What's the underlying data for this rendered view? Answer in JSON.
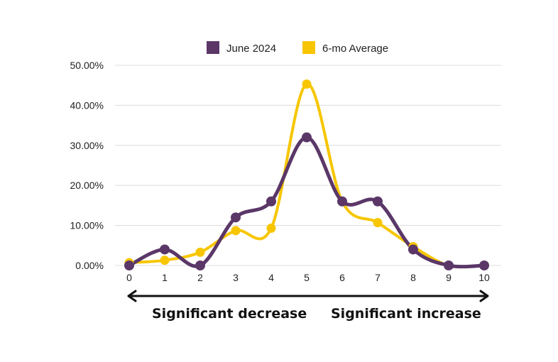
{
  "chart_data": {
    "type": "line",
    "x": [
      0,
      1,
      2,
      3,
      4,
      5,
      6,
      7,
      8,
      9,
      10
    ],
    "xticks": [
      "0",
      "1",
      "2",
      "3",
      "4",
      "5",
      "6",
      "7",
      "8",
      "9",
      "10"
    ],
    "yticks": [
      "0.00%",
      "10.00%",
      "20.00%",
      "30.00%",
      "40.00%",
      "50.00%"
    ],
    "ylim": [
      0,
      50
    ],
    "xlim": [
      0,
      10
    ],
    "grid": true,
    "legend": "top-center",
    "series": [
      {
        "name": "June 2024",
        "color": "#5b3768",
        "values": [
          0,
          4,
          0,
          12,
          16,
          32,
          16,
          16,
          4,
          0,
          0
        ]
      },
      {
        "name": "6-mo Average",
        "color": "#f7c600",
        "values": [
          0.7,
          1.3,
          3.3,
          8.7,
          9.3,
          45.3,
          16,
          10.7,
          4.7,
          0,
          0
        ]
      }
    ],
    "annotations": {
      "left": "Significant decrease",
      "right": "Significant increase"
    }
  }
}
